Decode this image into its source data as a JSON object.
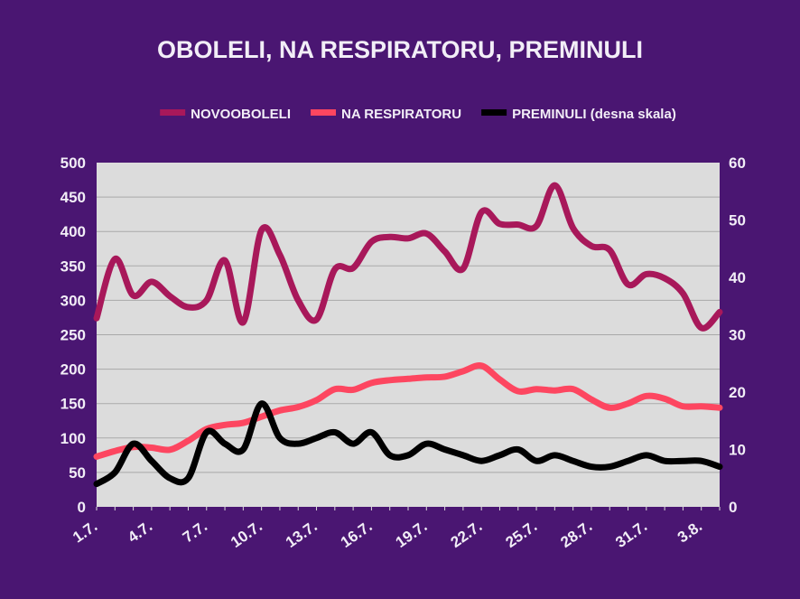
{
  "chart_data": {
    "type": "line",
    "title": "OBOLELI, NA RESPIRATORU, PREMINULI",
    "x": [
      "1.7.",
      "2.7.",
      "3.7.",
      "4.7.",
      "5.7.",
      "6.7.",
      "7.7.",
      "8.7.",
      "9.7.",
      "10.7.",
      "11.7.",
      "12.7.",
      "13.7.",
      "14.7.",
      "15.7.",
      "16.7.",
      "17.7.",
      "18.7.",
      "19.7.",
      "20.7.",
      "21.7.",
      "22.7.",
      "23.7.",
      "24.7.",
      "25.7.",
      "26.7.",
      "27.7.",
      "28.7.",
      "29.7.",
      "30.7.",
      "31.7.",
      "1.8.",
      "2.8.",
      "3.8.",
      "4.8."
    ],
    "x_tick_labels": [
      "1.7.",
      "4.7.",
      "7.7.",
      "10.7.",
      "13.7.",
      "16.7.",
      "19.7.",
      "22.7.",
      "25.7.",
      "28.7.",
      "31.7.",
      "3.8."
    ],
    "y_left": {
      "range": [
        0,
        500
      ],
      "ticks": [
        "0",
        "50",
        "100",
        "150",
        "200",
        "250",
        "300",
        "350",
        "400",
        "450",
        "500"
      ]
    },
    "y_right": {
      "range": [
        0,
        60
      ],
      "ticks": [
        "0",
        "10",
        "20",
        "30",
        "40",
        "50",
        "60"
      ]
    },
    "grid": true,
    "legend_position": "top",
    "series": [
      {
        "name": "NOVOOBOLELI",
        "axis": "left",
        "color": "#a8185a",
        "values": [
          274,
          360,
          307,
          327,
          306,
          290,
          300,
          358,
          268,
          402,
          366,
          300,
          272,
          345,
          347,
          385,
          392,
          390,
          397,
          371,
          346,
          428,
          411,
          410,
          408,
          467,
          405,
          379,
          373,
          323,
          338,
          332,
          310,
          260,
          283
        ]
      },
      {
        "name": "NA RESPIRATORU",
        "axis": "left",
        "color": "#fd4660",
        "values": [
          73,
          81,
          87,
          86,
          83,
          96,
          113,
          119,
          122,
          131,
          140,
          145,
          155,
          171,
          170,
          180,
          184,
          186,
          188,
          189,
          197,
          205,
          185,
          168,
          171,
          169,
          171,
          156,
          144,
          150,
          161,
          157,
          146,
          146,
          144
        ]
      },
      {
        "name": "PREMINULI (desna skala)",
        "axis": "right",
        "color": "#000000",
        "values": [
          4,
          6,
          11,
          8,
          5,
          5,
          13,
          11,
          10,
          18,
          12,
          11,
          12,
          13,
          11,
          13,
          9,
          9,
          11,
          10,
          9,
          8,
          9,
          10,
          8,
          9,
          8,
          7,
          7,
          8,
          9,
          8,
          8,
          8,
          7
        ]
      }
    ]
  },
  "colors": {
    "background": "#4a1672",
    "plot_area": "#dcdcdc",
    "gridline": "#a9a9a9"
  }
}
